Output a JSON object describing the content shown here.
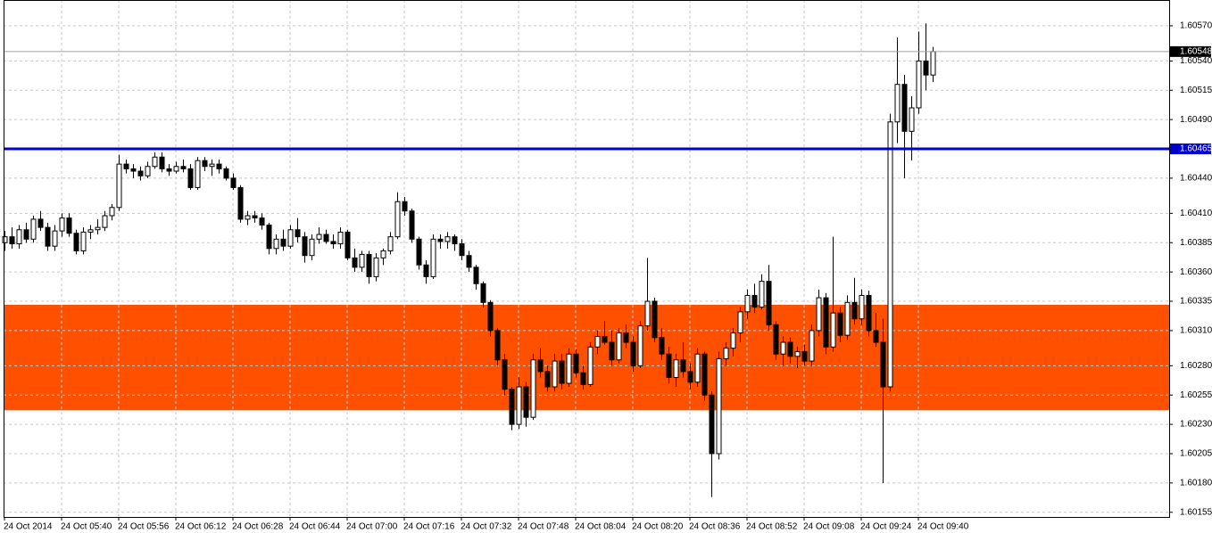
{
  "chart_data": {
    "type": "candlestick",
    "ylim": [
      1.60151,
      1.60592
    ],
    "yticks": [
      {
        "value": 1.6057,
        "label": "1.60570"
      },
      {
        "value": 1.6054,
        "label": "1.60540"
      },
      1.60515,
      {
        "value": 1.6049,
        "label": "1.60490"
      },
      {
        "value": 1.6044,
        "label": "1.60440"
      },
      {
        "value": 1.6041,
        "label": "1.60410"
      },
      1.60385,
      {
        "value": 1.6036,
        "label": "1.60360"
      },
      1.60335,
      {
        "value": 1.6031,
        "label": "1.60310"
      },
      {
        "value": 1.6028,
        "label": "1.60280"
      },
      1.60255,
      {
        "value": 1.6023,
        "label": "1.60230"
      },
      1.60205,
      {
        "value": 1.6018,
        "label": "1.60180"
      },
      1.60155
    ],
    "xticks": [
      {
        "value": 0,
        "label": "24 Oct 2014"
      },
      {
        "value": 8,
        "label": "24 Oct 05:40"
      },
      {
        "value": 16,
        "label": "24 Oct 05:56"
      },
      {
        "value": 24,
        "label": "24 Oct 06:12"
      },
      {
        "value": 32,
        "label": "24 Oct 06:28"
      },
      {
        "value": 40,
        "label": "24 Oct 06:44"
      },
      {
        "value": 48,
        "label": "24 Oct 07:00"
      },
      {
        "value": 56,
        "label": "24 Oct 07:16"
      },
      {
        "value": 64,
        "label": "24 Oct 07:32"
      },
      {
        "value": 72,
        "label": "24 Oct 07:48"
      },
      {
        "value": 80,
        "label": "24 Oct 08:04"
      },
      {
        "value": 88,
        "label": "24 Oct 08:20"
      },
      {
        "value": 96,
        "label": "24 Oct 08:36"
      },
      {
        "value": 104,
        "label": "24 Oct 08:52"
      },
      {
        "value": 112,
        "label": "24 Oct 09:08"
      },
      {
        "value": 120,
        "label": "24 Oct 09:24"
      },
      {
        "value": 128,
        "label": "24 Oct 09:40"
      }
    ],
    "grid": true,
    "zones": [
      {
        "from": 1.60242,
        "to": 1.60332,
        "color": "#ff5000"
      }
    ],
    "hlines": [
      {
        "value": 1.60465,
        "label": "1.60465",
        "color": "#0000cc"
      },
      {
        "value": 1.60548,
        "label": "1.60548",
        "color": "#000000"
      }
    ],
    "ohlc": [
      [
        1.60385,
        1.60395,
        1.60378,
        1.6039
      ],
      [
        1.6039,
        1.60398,
        1.6038,
        1.60384
      ],
      [
        1.60384,
        1.604,
        1.6038,
        1.60396
      ],
      [
        1.60396,
        1.60402,
        1.60385,
        1.60388
      ],
      [
        1.60388,
        1.60408,
        1.60385,
        1.60405
      ],
      [
        1.60405,
        1.60412,
        1.60395,
        1.60398
      ],
      [
        1.60398,
        1.60402,
        1.60378,
        1.60382
      ],
      [
        1.60382,
        1.604,
        1.60378,
        1.60395
      ],
      [
        1.60395,
        1.6041,
        1.6039,
        1.60406
      ],
      [
        1.60406,
        1.6041,
        1.6039,
        1.60393
      ],
      [
        1.60393,
        1.60396,
        1.60375,
        1.60378
      ],
      [
        1.60378,
        1.60398,
        1.60375,
        1.60394
      ],
      [
        1.60394,
        1.604,
        1.60388,
        1.60396
      ],
      [
        1.60396,
        1.60405,
        1.60392,
        1.60398
      ],
      [
        1.60398,
        1.60412,
        1.60395,
        1.60408
      ],
      [
        1.60408,
        1.60418,
        1.60404,
        1.60415
      ],
      [
        1.60415,
        1.6046,
        1.60412,
        1.60452
      ],
      [
        1.60452,
        1.60456,
        1.60444,
        1.60448
      ],
      [
        1.60448,
        1.60452,
        1.6044,
        1.60446
      ],
      [
        1.60446,
        1.6045,
        1.60438,
        1.60442
      ],
      [
        1.60442,
        1.60454,
        1.6044,
        1.6045
      ],
      [
        1.6045,
        1.60462,
        1.60448,
        1.60458
      ],
      [
        1.60458,
        1.60462,
        1.60445,
        1.60448
      ],
      [
        1.60448,
        1.60452,
        1.60442,
        1.60446
      ],
      [
        1.60446,
        1.60454,
        1.60444,
        1.6045
      ],
      [
        1.6045,
        1.60456,
        1.60445,
        1.60448
      ],
      [
        1.60448,
        1.60452,
        1.6043,
        1.60432
      ],
      [
        1.60432,
        1.60458,
        1.6043,
        1.60455
      ],
      [
        1.60455,
        1.60458,
        1.60446,
        1.6045
      ],
      [
        1.6045,
        1.60456,
        1.60442,
        1.60452
      ],
      [
        1.60452,
        1.60456,
        1.60444,
        1.60448
      ],
      [
        1.60448,
        1.6045,
        1.60438,
        1.6044
      ],
      [
        1.6044,
        1.60444,
        1.6043,
        1.60432
      ],
      [
        1.60432,
        1.60434,
        1.60402,
        1.60405
      ],
      [
        1.60405,
        1.60412,
        1.604,
        1.60408
      ],
      [
        1.60408,
        1.60412,
        1.60402,
        1.60406
      ],
      [
        1.60406,
        1.6041,
        1.60396,
        1.604
      ],
      [
        1.604,
        1.60402,
        1.60375,
        1.6038
      ],
      [
        1.6038,
        1.60392,
        1.60375,
        1.60388
      ],
      [
        1.60388,
        1.60396,
        1.60378,
        1.60382
      ],
      [
        1.60382,
        1.604,
        1.6038,
        1.60396
      ],
      [
        1.60396,
        1.60406,
        1.60385,
        1.6039
      ],
      [
        1.6039,
        1.60394,
        1.60368,
        1.60374
      ],
      [
        1.60374,
        1.60392,
        1.6037,
        1.60388
      ],
      [
        1.60388,
        1.60398,
        1.60384,
        1.60392
      ],
      [
        1.60392,
        1.60396,
        1.60384,
        1.60386
      ],
      [
        1.60386,
        1.60392,
        1.6038,
        1.60384
      ],
      [
        1.60384,
        1.60398,
        1.6038,
        1.60394
      ],
      [
        1.60394,
        1.60396,
        1.6037,
        1.60372
      ],
      [
        1.60372,
        1.6038,
        1.6036,
        1.60364
      ],
      [
        1.60364,
        1.60378,
        1.6036,
        1.60375
      ],
      [
        1.60375,
        1.60378,
        1.6035,
        1.60356
      ],
      [
        1.60356,
        1.60376,
        1.60352,
        1.60372
      ],
      [
        1.60372,
        1.6038,
        1.60366,
        1.60378
      ],
      [
        1.60378,
        1.60394,
        1.60375,
        1.6039
      ],
      [
        1.6039,
        1.60428,
        1.60388,
        1.6042
      ],
      [
        1.6042,
        1.60424,
        1.60408,
        1.60412
      ],
      [
        1.60412,
        1.60414,
        1.60385,
        1.60388
      ],
      [
        1.60388,
        1.6039,
        1.60362,
        1.60366
      ],
      [
        1.60366,
        1.6037,
        1.6035,
        1.60356
      ],
      [
        1.60356,
        1.60392,
        1.60354,
        1.60388
      ],
      [
        1.60388,
        1.60392,
        1.6038,
        1.60386
      ],
      [
        1.60386,
        1.60394,
        1.6038,
        1.6039
      ],
      [
        1.6039,
        1.60392,
        1.60378,
        1.60384
      ],
      [
        1.60384,
        1.60388,
        1.6037,
        1.60374
      ],
      [
        1.60374,
        1.60378,
        1.6036,
        1.60364
      ],
      [
        1.60364,
        1.60366,
        1.60345,
        1.6035
      ],
      [
        1.6035,
        1.60352,
        1.6033,
        1.60334
      ],
      [
        1.60334,
        1.60336,
        1.60305,
        1.6031
      ],
      [
        1.6031,
        1.60312,
        1.6028,
        1.60285
      ],
      [
        1.60285,
        1.6029,
        1.60255,
        1.6026
      ],
      [
        1.6026,
        1.60262,
        1.60225,
        1.6023
      ],
      [
        1.6023,
        1.6027,
        1.60226,
        1.60262
      ],
      [
        1.60262,
        1.60266,
        1.60228,
        1.60236
      ],
      [
        1.60236,
        1.6029,
        1.60234,
        1.60285
      ],
      [
        1.60285,
        1.60295,
        1.6027,
        1.60275
      ],
      [
        1.60275,
        1.6028,
        1.60258,
        1.60262
      ],
      [
        1.60262,
        1.6029,
        1.60258,
        1.60284
      ],
      [
        1.60284,
        1.6029,
        1.6026,
        1.60265
      ],
      [
        1.60265,
        1.60295,
        1.60262,
        1.6029
      ],
      [
        1.6029,
        1.60294,
        1.6027,
        1.60274
      ],
      [
        1.60274,
        1.6028,
        1.6026,
        1.60264
      ],
      [
        1.60264,
        1.603,
        1.60262,
        1.60296
      ],
      [
        1.60296,
        1.6031,
        1.6029,
        1.60305
      ],
      [
        1.60305,
        1.60318,
        1.60298,
        1.603
      ],
      [
        1.603,
        1.6031,
        1.6028,
        1.60285
      ],
      [
        1.60285,
        1.60312,
        1.60282,
        1.60308
      ],
      [
        1.60308,
        1.60315,
        1.60295,
        1.603
      ],
      [
        1.603,
        1.60305,
        1.60275,
        1.6028
      ],
      [
        1.6028,
        1.60318,
        1.60278,
        1.60314
      ],
      [
        1.60314,
        1.60372,
        1.6031,
        1.60335
      ],
      [
        1.60335,
        1.60338,
        1.603,
        1.60304
      ],
      [
        1.60304,
        1.60312,
        1.60285,
        1.6029
      ],
      [
        1.6029,
        1.60296,
        1.60265,
        1.6027
      ],
      [
        1.6027,
        1.6029,
        1.60262,
        1.60285
      ],
      [
        1.60285,
        1.603,
        1.6027,
        1.60275
      ],
      [
        1.60275,
        1.60282,
        1.6026,
        1.60266
      ],
      [
        1.60266,
        1.60295,
        1.60262,
        1.6029
      ],
      [
        1.6029,
        1.60292,
        1.6025,
        1.60255
      ],
      [
        1.60255,
        1.60258,
        1.60168,
        1.60205
      ],
      [
        1.60205,
        1.60292,
        1.602,
        1.60286
      ],
      [
        1.60286,
        1.603,
        1.6028,
        1.60295
      ],
      [
        1.60295,
        1.60312,
        1.60288,
        1.60308
      ],
      [
        1.60308,
        1.6033,
        1.603,
        1.60326
      ],
      [
        1.60326,
        1.60345,
        1.6032,
        1.6034
      ],
      [
        1.6034,
        1.6035,
        1.60325,
        1.6033
      ],
      [
        1.6033,
        1.60358,
        1.60328,
        1.60352
      ],
      [
        1.60352,
        1.60366,
        1.6031,
        1.60315
      ],
      [
        1.60315,
        1.60318,
        1.60285,
        1.6029
      ],
      [
        1.6029,
        1.60305,
        1.6028,
        1.603
      ],
      [
        1.603,
        1.60304,
        1.60282,
        1.60288
      ],
      [
        1.60288,
        1.60296,
        1.60278,
        1.60292
      ],
      [
        1.60292,
        1.60298,
        1.6028,
        1.60284
      ],
      [
        1.60284,
        1.60315,
        1.6028,
        1.6031
      ],
      [
        1.6031,
        1.60345,
        1.60305,
        1.60338
      ],
      [
        1.60338,
        1.60342,
        1.6029,
        1.60296
      ],
      [
        1.60296,
        1.6039,
        1.60292,
        1.60325
      ],
      [
        1.60325,
        1.6033,
        1.603,
        1.60306
      ],
      [
        1.60306,
        1.6034,
        1.60302,
        1.60334
      ],
      [
        1.60334,
        1.60355,
        1.60315,
        1.6032
      ],
      [
        1.6032,
        1.60345,
        1.60315,
        1.6034
      ],
      [
        1.6034,
        1.60344,
        1.60305,
        1.6031
      ],
      [
        1.6031,
        1.60325,
        1.60296,
        1.603
      ],
      [
        1.603,
        1.6032,
        1.6018,
        1.60262
      ],
      [
        1.60262,
        1.60495,
        1.60258,
        1.60488
      ],
      [
        1.60488,
        1.6056,
        1.6047,
        1.6052
      ],
      [
        1.6052,
        1.60528,
        1.6044,
        1.6048
      ],
      [
        1.6048,
        1.6051,
        1.60455,
        1.605
      ],
      [
        1.605,
        1.60565,
        1.60495,
        1.6054
      ],
      [
        1.6054,
        1.60572,
        1.60515,
        1.60528
      ],
      [
        1.60528,
        1.60552,
        1.60522,
        1.60548
      ]
    ]
  }
}
